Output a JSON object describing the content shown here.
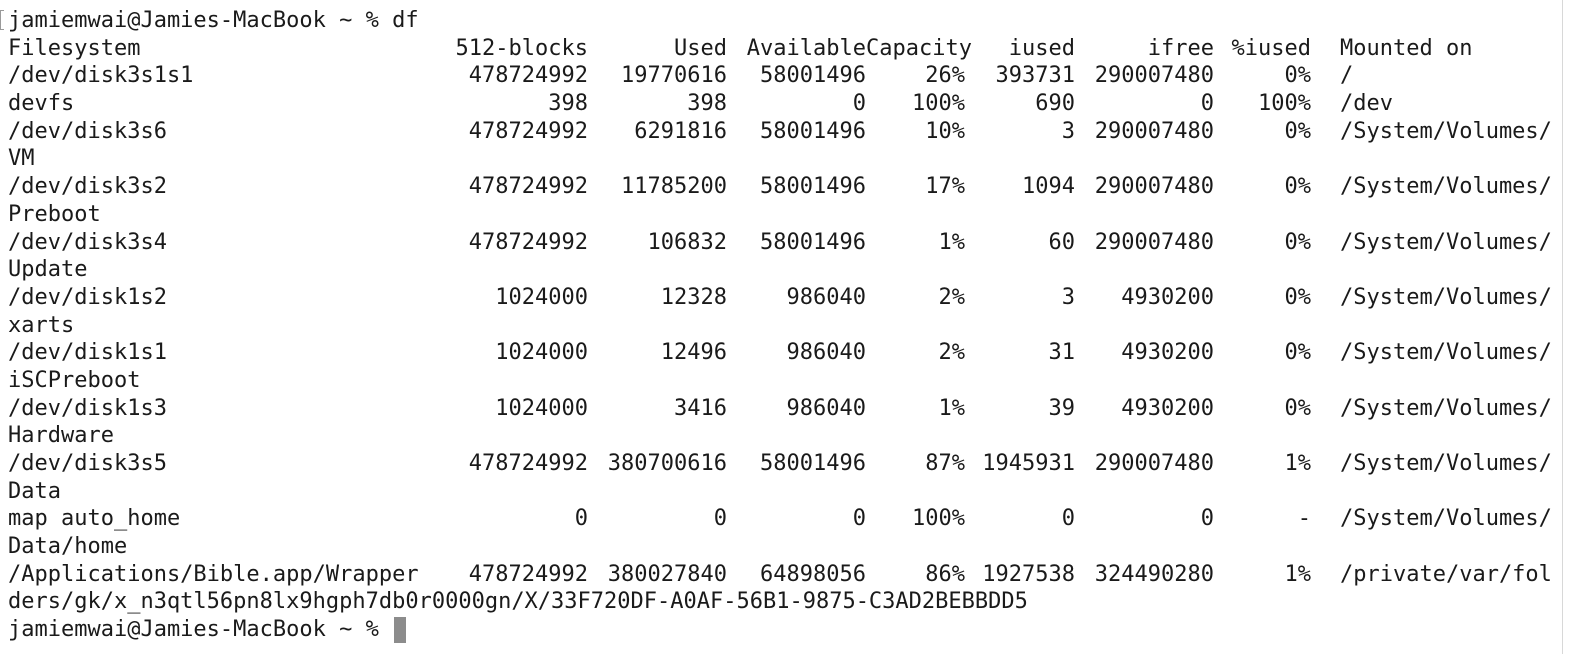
{
  "terminal": {
    "prompt": "jamiemwai@Jamies-MacBook ~ % ",
    "command": "df",
    "header": [
      "Filesystem",
      "512-blocks",
      "Used",
      "Available",
      "Capacity",
      "iused",
      "ifree",
      "%iused",
      "Mounted on"
    ],
    "rows": [
      {
        "fs": "/dev/disk3s1s1",
        "blocks": "478724992",
        "used": "19770616",
        "avail": "58001496",
        "cap": "26%",
        "iused": "393731",
        "ifree": "290007480",
        "piused": "0%",
        "mount": "/",
        "wrap": ""
      },
      {
        "fs": "devfs",
        "blocks": "398",
        "used": "398",
        "avail": "0",
        "cap": "100%",
        "iused": "690",
        "ifree": "0",
        "piused": "100%",
        "mount": "/dev",
        "wrap": ""
      },
      {
        "fs": "/dev/disk3s6",
        "blocks": "478724992",
        "used": "6291816",
        "avail": "58001496",
        "cap": "10%",
        "iused": "3",
        "ifree": "290007480",
        "piused": "0%",
        "mount": "/System/Volumes/",
        "wrap": "VM"
      },
      {
        "fs": "/dev/disk3s2",
        "blocks": "478724992",
        "used": "11785200",
        "avail": "58001496",
        "cap": "17%",
        "iused": "1094",
        "ifree": "290007480",
        "piused": "0%",
        "mount": "/System/Volumes/",
        "wrap": "Preboot"
      },
      {
        "fs": "/dev/disk3s4",
        "blocks": "478724992",
        "used": "106832",
        "avail": "58001496",
        "cap": "1%",
        "iused": "60",
        "ifree": "290007480",
        "piused": "0%",
        "mount": "/System/Volumes/",
        "wrap": "Update"
      },
      {
        "fs": "/dev/disk1s2",
        "blocks": "1024000",
        "used": "12328",
        "avail": "986040",
        "cap": "2%",
        "iused": "3",
        "ifree": "4930200",
        "piused": "0%",
        "mount": "/System/Volumes/",
        "wrap": "xarts"
      },
      {
        "fs": "/dev/disk1s1",
        "blocks": "1024000",
        "used": "12496",
        "avail": "986040",
        "cap": "2%",
        "iused": "31",
        "ifree": "4930200",
        "piused": "0%",
        "mount": "/System/Volumes/",
        "wrap": "iSCPreboot"
      },
      {
        "fs": "/dev/disk1s3",
        "blocks": "1024000",
        "used": "3416",
        "avail": "986040",
        "cap": "1%",
        "iused": "39",
        "ifree": "4930200",
        "piused": "0%",
        "mount": "/System/Volumes/",
        "wrap": "Hardware"
      },
      {
        "fs": "/dev/disk3s5",
        "blocks": "478724992",
        "used": "380700616",
        "avail": "58001496",
        "cap": "87%",
        "iused": "1945931",
        "ifree": "290007480",
        "piused": "1%",
        "mount": "/System/Volumes/",
        "wrap": "Data"
      },
      {
        "fs": "map auto_home",
        "blocks": "0",
        "used": "0",
        "avail": "0",
        "cap": "100%",
        "iused": "0",
        "ifree": "0",
        "piused": "-",
        "mount": "/System/Volumes/",
        "wrap": "Data/home"
      },
      {
        "fs": "/Applications/Bible.app/Wrapper",
        "blocks": "478724992",
        "used": "380027840",
        "avail": "64898056",
        "cap": "86%",
        "iused": "1927538",
        "ifree": "324490280",
        "piused": "1%",
        "mount": "/private/var/fol",
        "wrap": "ders/gk/x_n3qtl56pn8lx9hgph7db0r0000gn/X/33F720DF-A0AF-56B1-9875-C3AD2BEBBDD5"
      }
    ],
    "final_prompt": "jamiemwai@Jamies-MacBook ~ % "
  }
}
